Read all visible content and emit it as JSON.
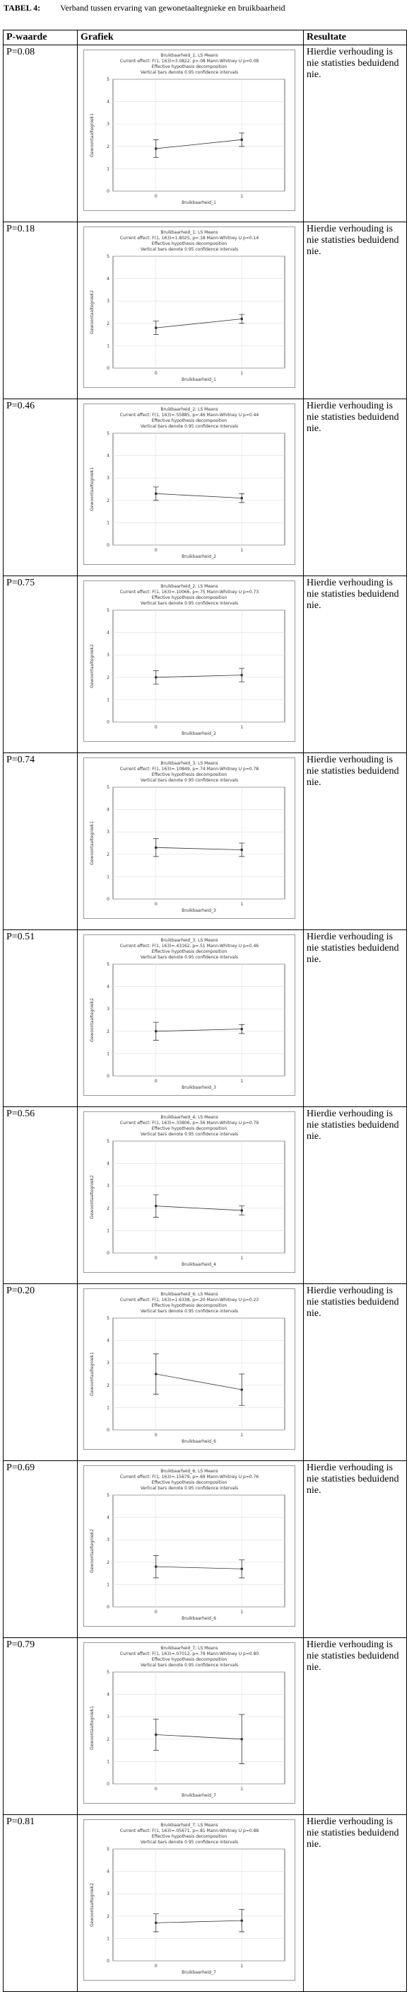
{
  "header": {
    "label": "TABEL 4:",
    "title": "Verband tussen ervaring van gewonetaaltegnieke en bruikbaarheid"
  },
  "table": {
    "headers": [
      "P-waarde",
      "Grafiek",
      "Resultate"
    ],
    "rows": [
      {
        "p": "P=0.08",
        "result": "Hierdie verhouding is nie statisties beduidend nie.",
        "chart": {
          "title": "Bruikbaarheid_1; LS Means",
          "effect": "Current effect: F(1, 163)=3.0822, p=.08 Mann-Whitney U p=0.08",
          "note1": "Effective hypothesis decomposition",
          "note2": "Vertical bars denote 0.95 confidence intervals",
          "ylabel": "Gewoontaaltegniek1",
          "xlabel": "Bruikbaarheid_1",
          "categories": [
            "0",
            "1"
          ],
          "values": [
            1.9,
            2.3
          ],
          "errors": [
            0.4,
            0.3
          ],
          "ylim": [
            0,
            5
          ],
          "yticks": [
            0,
            1,
            2,
            3,
            4,
            5
          ]
        }
      },
      {
        "p": "P=0.18",
        "result": "Hierdie verhouding is nie statisties beduidend nie.",
        "chart": {
          "title": "Bruikbaarheid_1; LS Means",
          "effect": "Current effect: F(1, 163)=1.8025, p=.18 Mann-Whitney U p=0.14",
          "note1": "Effective hypothesis decomposition",
          "note2": "Vertical bars denote 0.95 confidence intervals",
          "ylabel": "Gewoontaaltegniek2",
          "xlabel": "Bruikbaarheid_1",
          "categories": [
            "0",
            "1"
          ],
          "values": [
            1.8,
            2.2
          ],
          "errors": [
            0.3,
            0.2
          ],
          "ylim": [
            0,
            5
          ],
          "yticks": [
            0,
            1,
            2,
            3,
            4,
            5
          ]
        }
      },
      {
        "p": "P=0.46",
        "result": "Hierdie verhouding is nie statisties beduidend nie.",
        "chart": {
          "title": "Bruikbaarheid_2; LS Means",
          "effect": "Current effect: F(1, 163)=.55885, p=.46 Mann-Whitney U p=0.44",
          "note1": "Effective hypothesis decomposition",
          "note2": "Vertical bars denote 0.95 confidence intervals",
          "ylabel": "Gewoontaaltegniek1",
          "xlabel": "Bruikbaarheid_2",
          "categories": [
            "0",
            "1"
          ],
          "values": [
            2.3,
            2.1
          ],
          "errors": [
            0.3,
            0.2
          ],
          "ylim": [
            0,
            5
          ],
          "yticks": [
            0,
            1,
            2,
            3,
            4,
            5
          ]
        }
      },
      {
        "p": "P=0.75",
        "result": "Hierdie verhouding is nie statisties beduidend nie.",
        "chart": {
          "title": "Bruikbaarheid_2; LS Means",
          "effect": "Current effect: F(1, 163)=.10066, p=.75 Mann-Whitney U p=0.73",
          "note1": "Effective hypothesis decomposition",
          "note2": "Vertical bars denote 0.95 confidence intervals",
          "ylabel": "Gewoontaaltegniek2",
          "xlabel": "Bruikbaarheid_2",
          "categories": [
            "0",
            "1"
          ],
          "values": [
            2.0,
            2.1
          ],
          "errors": [
            0.3,
            0.3
          ],
          "ylim": [
            0,
            5
          ],
          "yticks": [
            0,
            1,
            2,
            3,
            4,
            5
          ]
        }
      },
      {
        "p": "P=0.74",
        "result": "Hierdie verhouding is nie statisties beduidend nie.",
        "chart": {
          "title": "Bruikbaarheid_3; LS Means",
          "effect": "Current effect: F(1, 163)=.10849, p=.74 Mann-Whitney U p=0.78",
          "note1": "Effective hypothesis decomposition",
          "note2": "Vertical bars denote 0.95 confidence intervals",
          "ylabel": "Gewoontaaltegniek1",
          "xlabel": "Bruikbaarheid_3",
          "categories": [
            "0",
            "1"
          ],
          "values": [
            2.3,
            2.2
          ],
          "errors": [
            0.4,
            0.3
          ],
          "ylim": [
            0,
            5
          ],
          "yticks": [
            0,
            1,
            2,
            3,
            4,
            5
          ]
        }
      },
      {
        "p": "P=0.51",
        "result": "Hierdie verhouding is nie statisties beduidend nie.",
        "chart": {
          "title": "Bruikbaarheid_3; LS Means",
          "effect": "Current effect: F(1, 163)=.43162, p=.51 Mann-Whitney U p=0.46",
          "note1": "Effective hypothesis decomposition",
          "note2": "Vertical bars denote 0.95 confidence intervals",
          "ylabel": "Gewoontaaltegniek2",
          "xlabel": "Bruikbaarheid_3",
          "categories": [
            "0",
            "1"
          ],
          "values": [
            2.0,
            2.1
          ],
          "errors": [
            0.4,
            0.2
          ],
          "ylim": [
            0,
            5
          ],
          "yticks": [
            0,
            1,
            2,
            3,
            4,
            5
          ]
        }
      },
      {
        "p": "P=0.56",
        "result": "Hierdie verhouding is nie statisties beduidend nie.",
        "chart": {
          "title": "Bruikbaarheid_4; LS Means",
          "effect": "Current effect: F(1, 163)=.33806, p=.56 Mann-Whitney U p=0.79",
          "note1": "Effective hypothesis decomposition",
          "note2": "Vertical bars denote 0.95 confidence intervals",
          "ylabel": "Gewoontaaltegniek2",
          "xlabel": "Bruikbaarheid_4",
          "categories": [
            "0",
            "1"
          ],
          "values": [
            2.1,
            1.9
          ],
          "errors": [
            0.5,
            0.2
          ],
          "ylim": [
            0,
            5
          ],
          "yticks": [
            0,
            1,
            2,
            3,
            4,
            5
          ]
        }
      },
      {
        "p": "P=0.20",
        "result": "Hierdie verhouding is nie statisties beduidend nie.",
        "chart": {
          "title": "Bruikbaarheid_6; LS Means",
          "effect": "Current effect: F(1, 163)=1.6338, p=.20 Mann-Whitney U p=0.23",
          "note1": "Effective hypothesis decomposition",
          "note2": "Vertical bars denote 0.95 confidence intervals",
          "ylabel": "Gewoontaaltegniek1",
          "xlabel": "Bruikbaarheid_6",
          "categories": [
            "0",
            "1"
          ],
          "values": [
            2.5,
            1.8
          ],
          "errors": [
            0.9,
            0.7
          ],
          "ylim": [
            0,
            5
          ],
          "yticks": [
            0,
            1,
            2,
            3,
            4,
            5
          ]
        }
      },
      {
        "p": "P=0.69",
        "result": "Hierdie verhouding is nie statisties beduidend nie.",
        "chart": {
          "title": "Bruikbaarheid_6; LS Means",
          "effect": "Current effect: F(1, 163)=.15679, p=.69 Mann-Whitney U p=0.76",
          "note1": "Effective hypothesis decomposition",
          "note2": "Vertical bars denote 0.95 confidence intervals",
          "ylabel": "Gewoontaaltegniek2",
          "xlabel": "Bruikbaarheid_6",
          "categories": [
            "0",
            "1"
          ],
          "values": [
            1.8,
            1.7
          ],
          "errors": [
            0.5,
            0.4
          ],
          "ylim": [
            0,
            5
          ],
          "yticks": [
            0,
            1,
            2,
            3,
            4,
            5
          ]
        }
      },
      {
        "p": "P=0.79",
        "result": "Hierdie verhouding is nie statisties beduidend nie.",
        "chart": {
          "title": "Bruikbaarheid_7; LS Means",
          "effect": "Current effect: F(1, 163)=.07012, p=.79 Mann-Whitney U p=0.80",
          "note1": "Effective hypothesis decomposition",
          "note2": "Vertical bars denote 0.95 confidence intervals",
          "ylabel": "Gewoontaaltegniek1",
          "xlabel": "Bruikbaarheid_7",
          "categories": [
            "0",
            "1"
          ],
          "values": [
            2.2,
            2.0
          ],
          "errors": [
            0.7,
            1.1
          ],
          "ylim": [
            0,
            5
          ],
          "yticks": [
            0,
            1,
            2,
            3,
            4,
            5
          ]
        }
      },
      {
        "p": "P=0.81",
        "result": "Hierdie verhouding is nie statisties beduidend nie.",
        "chart": {
          "title": "Bruikbaarheid_7; LS Means",
          "effect": "Current effect: F(1, 163)=.05671, p=.81 Mann-Whitney U p=0.88",
          "note1": "Effective hypothesis decomposition",
          "note2": "Vertical bars denote 0.95 confidence intervals",
          "ylabel": "Gewoontaaltegniek2",
          "xlabel": "Bruikbaarheid_7",
          "categories": [
            "0",
            "1"
          ],
          "values": [
            1.7,
            1.8
          ],
          "errors": [
            0.4,
            0.5
          ],
          "ylim": [
            0,
            5
          ],
          "yticks": [
            0,
            1,
            2,
            3,
            4,
            5
          ]
        }
      }
    ]
  }
}
